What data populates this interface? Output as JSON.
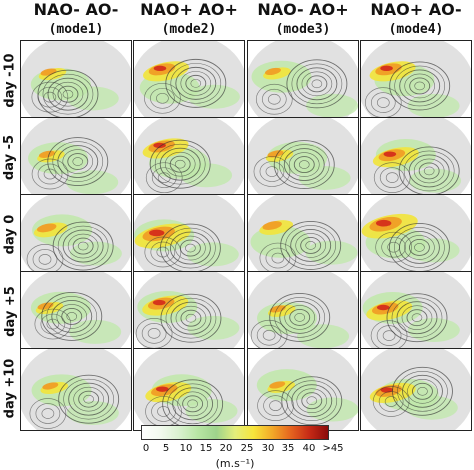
{
  "columns": [
    {
      "title": "NAO- AO-",
      "subtitle": "(mode1)"
    },
    {
      "title": "NAO+ AO+",
      "subtitle": "(mode2)"
    },
    {
      "title": "NAO- AO+",
      "subtitle": "(mode3)"
    },
    {
      "title": "NAO+ AO-",
      "subtitle": "(mode4)"
    }
  ],
  "rows": [
    "day -10",
    "day -5",
    "day 0",
    "day +5",
    "day +10"
  ],
  "colorbar": {
    "ticks": [
      "0",
      "5",
      "10",
      "15",
      "20",
      "25",
      "30",
      "35",
      "40",
      ">45"
    ],
    "units": "(m.s⁻¹)"
  },
  "colors": {
    "land_gray": "#bdbdbd",
    "wind_green": "#bfe8a9",
    "wind_yellow": "#f2e43a",
    "wind_orange": "#ef9a24",
    "wind_red": "#d3281b",
    "contour": "#333333"
  }
}
